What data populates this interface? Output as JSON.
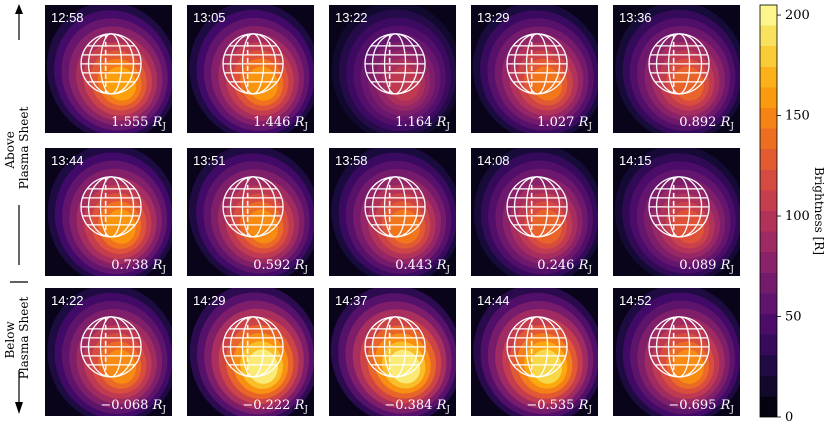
{
  "chart_data": {
    "type": "heatmap",
    "colormap": "inferno",
    "colorbar": {
      "label": "Brightness [R]",
      "ticks": [
        0,
        50,
        100,
        150,
        200
      ],
      "range": [
        0,
        205
      ]
    },
    "side_labels": {
      "above": "Above\nPlasma Sheet",
      "below": "Below\nPlasma Sheet"
    },
    "distance_unit": "R",
    "distance_unit_subscript": "J",
    "panels": [
      {
        "time": "12:58",
        "distance": "1.555",
        "peak_brightness": 170
      },
      {
        "time": "13:05",
        "distance": "1.446",
        "peak_brightness": 165
      },
      {
        "time": "13:22",
        "distance": "1.164",
        "peak_brightness": 110
      },
      {
        "time": "13:29",
        "distance": "1.027",
        "peak_brightness": 150
      },
      {
        "time": "13:36",
        "distance": "0.892",
        "peak_brightness": 140
      },
      {
        "time": "13:44",
        "distance": "0.738",
        "peak_brightness": 165
      },
      {
        "time": "13:51",
        "distance": "0.592",
        "peak_brightness": 160
      },
      {
        "time": "13:58",
        "distance": "0.443",
        "peak_brightness": 150
      },
      {
        "time": "14:08",
        "distance": "0.246",
        "peak_brightness": 140
      },
      {
        "time": "14:15",
        "distance": "0.089",
        "peak_brightness": 130
      },
      {
        "time": "14:22",
        "distance": "−0.068",
        "peak_brightness": 160
      },
      {
        "time": "14:29",
        "distance": "−0.222",
        "peak_brightness": 205
      },
      {
        "time": "14:37",
        "distance": "−0.384",
        "peak_brightness": 205
      },
      {
        "time": "14:44",
        "distance": "−0.535",
        "peak_brightness": 195
      },
      {
        "time": "14:52",
        "distance": "−0.695",
        "peak_brightness": 160
      }
    ]
  }
}
